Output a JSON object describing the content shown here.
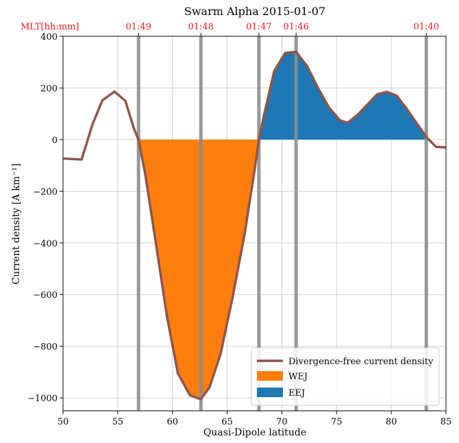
{
  "chart_data": {
    "type": "line",
    "title": "Swarm Alpha 2015-01-07",
    "xlabel": "Quasi-Dipole latitude",
    "ylabel": "Current density [A km⁻¹]",
    "xlim": [
      50,
      85
    ],
    "ylim": [
      -1050,
      400
    ],
    "xticks": [
      50,
      55,
      60,
      65,
      70,
      75,
      80,
      85
    ],
    "xtick_labels": [
      "50",
      "55",
      "60",
      "65",
      "70",
      "75",
      "80",
      "85"
    ],
    "yticks": [
      400,
      200,
      0,
      -200,
      -400,
      -600,
      -800,
      -1000
    ],
    "ytick_labels": [
      "400",
      "200",
      "0",
      "−200",
      "−400",
      "−600",
      "−800",
      "−1000"
    ],
    "grid": true,
    "legend_position": "lower-right",
    "mlt_axis": {
      "label": "MLT[hh:mm]",
      "ticks": [
        {
          "lat": 56.9,
          "label": "01:49"
        },
        {
          "lat": 62.6,
          "label": "01:48"
        },
        {
          "lat": 67.9,
          "label": "01:47"
        },
        {
          "lat": 71.3,
          "label": "01:46"
        },
        {
          "lat": 83.2,
          "label": "01:40"
        }
      ]
    },
    "boundaries": [
      56.9,
      62.6,
      67.9,
      71.3,
      83.2
    ],
    "series": [
      {
        "name": "Divergence-free current density",
        "color": "#8c564b",
        "x": [
          50.0,
          51.7,
          52.7,
          53.6,
          54.7,
          55.7,
          56.5,
          56.9,
          57.5,
          58.5,
          59.5,
          60.5,
          61.6,
          62.6,
          63.4,
          64.4,
          65.5,
          66.6,
          67.5,
          67.9,
          68.4,
          69.3,
          70.3,
          71.3,
          72.3,
          73.3,
          74.3,
          75.3,
          76.0,
          76.9,
          77.8,
          78.7,
          79.6,
          80.5,
          81.4,
          82.3,
          83.2,
          84.1,
          85.0
        ],
        "y": [
          -73,
          -77,
          60,
          152,
          186,
          150,
          40,
          0,
          -130,
          -405,
          -685,
          -905,
          -990,
          -1005,
          -958,
          -830,
          -610,
          -365,
          -120,
          0,
          100,
          265,
          335,
          340,
          285,
          200,
          125,
          75,
          65,
          95,
          135,
          175,
          185,
          170,
          120,
          65,
          10,
          -28,
          -30
        ]
      },
      {
        "name": "WEJ",
        "color": "#ff7f0e",
        "fill_range": [
          56.9,
          67.9
        ]
      },
      {
        "name": "EEJ",
        "color": "#1f77b4",
        "fill_range": [
          67.9,
          83.2
        ]
      }
    ]
  }
}
